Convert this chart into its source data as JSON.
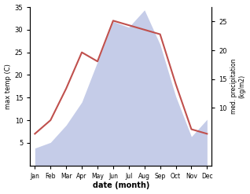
{
  "months": [
    "Jan",
    "Feb",
    "Mar",
    "Apr",
    "May",
    "Jun",
    "Jul",
    "Aug",
    "Sep",
    "Oct",
    "Nov",
    "Dec"
  ],
  "temp": [
    7,
    10,
    17,
    25,
    23,
    32,
    31,
    30,
    29,
    18,
    8,
    7
  ],
  "precip": [
    3,
    4,
    7,
    11,
    18,
    25,
    24,
    27,
    21,
    12,
    5,
    8
  ],
  "temp_color": "#c0504d",
  "precip_fill_color": "#c5cce8",
  "xlabel": "date (month)",
  "ylabel_left": "max temp (C)",
  "ylabel_right": "med. precipitation\n(kg/m2)",
  "ylim_left": [
    0,
    35
  ],
  "ylim_right": [
    0,
    27.5
  ],
  "yticks_left": [
    5,
    10,
    15,
    20,
    25,
    30,
    35
  ],
  "yticks_right": [
    10,
    15,
    20,
    25
  ],
  "figsize": [
    3.18,
    2.47
  ],
  "dpi": 100
}
